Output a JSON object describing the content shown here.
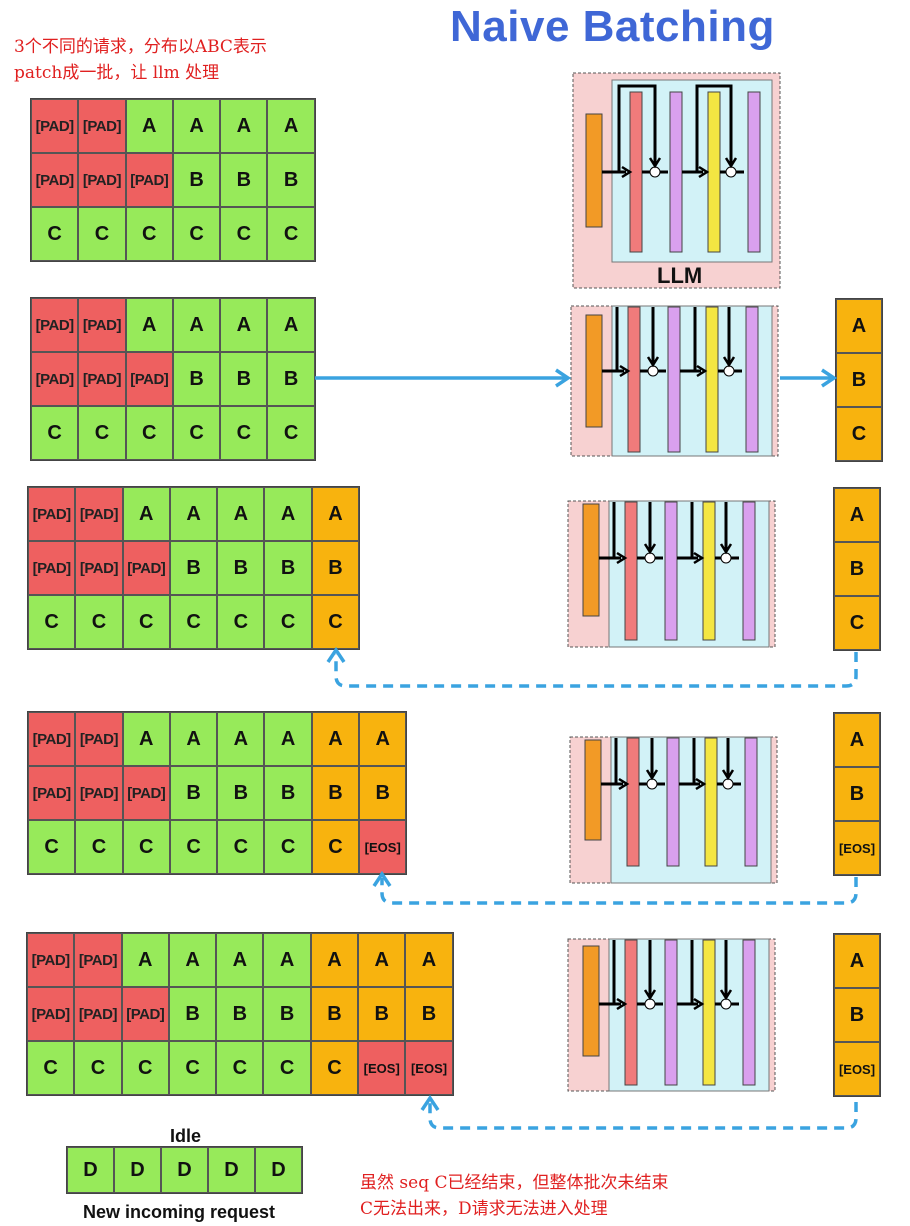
{
  "title": "Naive Batching",
  "note_top": [
    "3个不同的请求，分布以ABC表示",
    "patch成一批，让 llm 处理"
  ],
  "note_bottom": [
    "虽然 seq C已经结束，但整体批次未结束",
    "C无法出来，D请求无法进入处理"
  ],
  "llm_label": "LLM",
  "tokens": {
    "pad": "[PAD]",
    "eos": "[EOS]"
  },
  "batches": [
    {
      "rows": [
        [
          "[PAD]",
          "[PAD]",
          "A",
          "A",
          "A",
          "A"
        ],
        [
          "[PAD]",
          "[PAD]",
          "[PAD]",
          "B",
          "B",
          "B"
        ],
        [
          "C",
          "C",
          "C",
          "C",
          "C",
          "C"
        ]
      ]
    },
    {
      "rows": [
        [
          "[PAD]",
          "[PAD]",
          "A",
          "A",
          "A",
          "A"
        ],
        [
          "[PAD]",
          "[PAD]",
          "[PAD]",
          "B",
          "B",
          "B"
        ],
        [
          "C",
          "C",
          "C",
          "C",
          "C",
          "C"
        ]
      ],
      "outputs": [
        "A",
        "B",
        "C"
      ]
    },
    {
      "rows": [
        [
          "[PAD]",
          "[PAD]",
          "A",
          "A",
          "A",
          "A",
          "A"
        ],
        [
          "[PAD]",
          "[PAD]",
          "[PAD]",
          "B",
          "B",
          "B",
          "B"
        ],
        [
          "C",
          "C",
          "C",
          "C",
          "C",
          "C",
          "C"
        ]
      ],
      "outputs": [
        "A",
        "B",
        "C"
      ]
    },
    {
      "rows": [
        [
          "[PAD]",
          "[PAD]",
          "A",
          "A",
          "A",
          "A",
          "A",
          "A"
        ],
        [
          "[PAD]",
          "[PAD]",
          "[PAD]",
          "B",
          "B",
          "B",
          "B",
          "B"
        ],
        [
          "C",
          "C",
          "C",
          "C",
          "C",
          "C",
          "C",
          "[EOS]"
        ]
      ],
      "outputs": [
        "A",
        "B",
        "[EOS]"
      ]
    },
    {
      "rows": [
        [
          "[PAD]",
          "[PAD]",
          "A",
          "A",
          "A",
          "A",
          "A",
          "A",
          "A"
        ],
        [
          "[PAD]",
          "[PAD]",
          "[PAD]",
          "B",
          "B",
          "B",
          "B",
          "B",
          "B"
        ],
        [
          "C",
          "C",
          "C",
          "C",
          "C",
          "C",
          "C",
          "[EOS]",
          "[EOS]"
        ]
      ],
      "outputs": [
        "A",
        "B",
        "[EOS]"
      ]
    }
  ],
  "idle_label": "Idle",
  "incoming": [
    "D",
    "D",
    "D",
    "D",
    "D"
  ],
  "incoming_label": "New incoming request",
  "colors": {
    "pad": "#ee6060",
    "token": "#97ea5a",
    "generated": "#f8b30e",
    "arrow": "#3aa3e0",
    "title": "#3f67d6",
    "note": "#e02020"
  }
}
